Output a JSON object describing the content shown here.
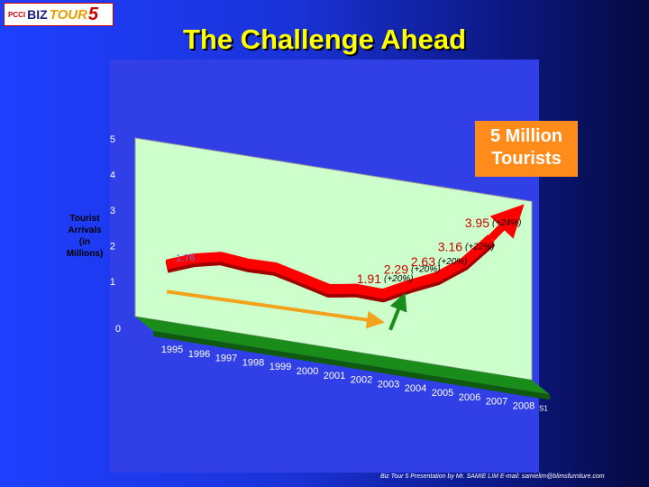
{
  "logo": {
    "pcci": "PCCI",
    "biz": "BIZ",
    "tour": "TOUR",
    "five": "5"
  },
  "title": "The Challenge Ahead",
  "callout": "5 Million\nTourists",
  "footer": "Biz Tour 5 Presentation by Mr. SAMIE LIM   E-mail: samielim@blimsfurniture.com",
  "chart_data": {
    "type": "line",
    "ylabel": "Tourist\nArrivals\n(in\nMillions)",
    "categories": [
      "1995",
      "1996",
      "1997",
      "1998",
      "1999",
      "2000",
      "2001",
      "2002",
      "2003",
      "2004",
      "2005",
      "2006",
      "2007",
      "2008"
    ],
    "ylim": [
      0,
      5
    ],
    "yticks": [
      "0",
      "1",
      "2",
      "3",
      "4",
      "5"
    ],
    "series": [
      {
        "name": "S1",
        "values": [
          1.76,
          2.05,
          2.22,
          2.15,
          2.17,
          1.99,
          1.8,
          1.93,
          1.91,
          2.29,
          2.63,
          3.16,
          3.95,
          4.8
        ],
        "color": "#ff0000"
      }
    ],
    "data_labels": [
      {
        "label": "1.76",
        "index": 0
      },
      {
        "label": "1.91",
        "index": 8,
        "growth": "(+20%)"
      },
      {
        "label": "2.29",
        "index": 9,
        "growth": "(+20%)"
      },
      {
        "label": "2.63",
        "index": 10,
        "growth": "(+20%)"
      },
      {
        "label": "3.16",
        "index": 11,
        "growth": "(+22%)"
      },
      {
        "label": "3.95",
        "index": 12,
        "growth": "(+24%)"
      }
    ],
    "annotations": [
      {
        "type": "arrow",
        "color": "#f2a31b",
        "from_index": 0,
        "to_index": 8
      },
      {
        "type": "arrow",
        "color": "#1a8c1a",
        "from_index": 8,
        "to_index": 9
      }
    ],
    "colors": {
      "wall": "#ccffcc",
      "floor": "#1a8c1a"
    }
  }
}
